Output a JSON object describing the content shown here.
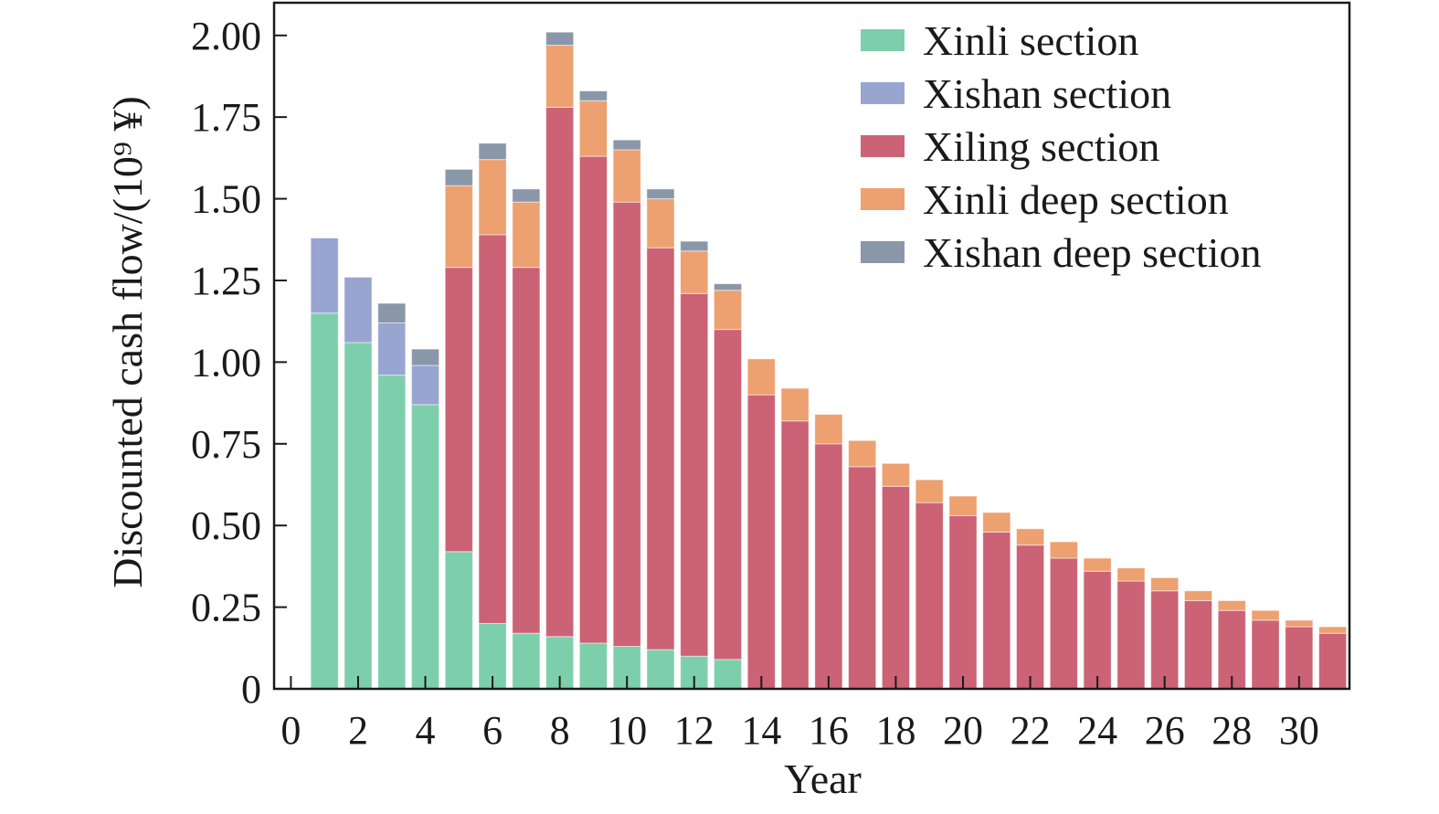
{
  "chart_data": {
    "type": "bar",
    "stacked": true,
    "xlabel": "Year",
    "ylabel": "Discounted cash flow/(10⁹ ¥)",
    "xlim": [
      -0.5,
      31.5
    ],
    "ylim": [
      0,
      2.1
    ],
    "xticks": [
      "0",
      "2",
      "4",
      "6",
      "8",
      "10",
      "12",
      "14",
      "16",
      "18",
      "20",
      "22",
      "24",
      "26",
      "28",
      "30"
    ],
    "xtick_values": [
      0,
      2,
      4,
      6,
      8,
      10,
      12,
      14,
      16,
      18,
      20,
      22,
      24,
      26,
      28,
      30
    ],
    "yticks": [
      "0",
      "0.25",
      "0.50",
      "0.75",
      "1.00",
      "1.25",
      "1.50",
      "1.75",
      "2.00"
    ],
    "ytick_values": [
      0,
      0.25,
      0.5,
      0.75,
      1.0,
      1.25,
      1.5,
      1.75,
      2.0
    ],
    "legend_position": "top-right",
    "grid": false,
    "x": [
      1,
      2,
      3,
      4,
      5,
      6,
      7,
      8,
      9,
      10,
      11,
      12,
      13,
      14,
      15,
      16,
      17,
      18,
      19,
      20,
      21,
      22,
      23,
      24,
      25,
      26,
      27,
      28,
      29,
      30,
      31
    ],
    "series": [
      {
        "name": "Xinli section",
        "color": "#7dcfab",
        "values": [
          1.15,
          1.06,
          0.96,
          0.87,
          0.42,
          0.2,
          0.17,
          0.16,
          0.14,
          0.13,
          0.12,
          0.1,
          0.09,
          0,
          0,
          0,
          0,
          0,
          0,
          0,
          0,
          0,
          0,
          0,
          0,
          0,
          0,
          0,
          0,
          0,
          0
        ]
      },
      {
        "name": "Xishan section",
        "color": "#98a5d1",
        "values": [
          0.23,
          0.2,
          0.16,
          0.12,
          0,
          0,
          0,
          0,
          0,
          0,
          0,
          0,
          0,
          0,
          0,
          0,
          0,
          0,
          0,
          0,
          0,
          0,
          0,
          0,
          0,
          0,
          0,
          0,
          0,
          0,
          0
        ]
      },
      {
        "name": "Xiling section",
        "color": "#cc6275",
        "values": [
          0,
          0,
          0,
          0,
          0.87,
          1.19,
          1.12,
          1.62,
          1.49,
          1.36,
          1.23,
          1.11,
          1.01,
          0.9,
          0.82,
          0.75,
          0.68,
          0.62,
          0.57,
          0.53,
          0.48,
          0.44,
          0.4,
          0.36,
          0.33,
          0.3,
          0.27,
          0.24,
          0.21,
          0.19,
          0.17
        ]
      },
      {
        "name": "Xinli deep section",
        "color": "#eda070",
        "values": [
          0,
          0,
          0,
          0,
          0.25,
          0.23,
          0.2,
          0.19,
          0.17,
          0.16,
          0.15,
          0.13,
          0.12,
          0.11,
          0.1,
          0.09,
          0.08,
          0.07,
          0.07,
          0.06,
          0.06,
          0.05,
          0.05,
          0.04,
          0.04,
          0.04,
          0.03,
          0.03,
          0.03,
          0.02,
          0.02
        ]
      },
      {
        "name": "Xishan deep section",
        "color": "#8a97a8",
        "values": [
          0,
          0,
          0.06,
          0.05,
          0.05,
          0.05,
          0.04,
          0.04,
          0.03,
          0.03,
          0.03,
          0.03,
          0.02,
          0,
          0,
          0,
          0,
          0,
          0,
          0,
          0,
          0,
          0,
          0,
          0,
          0,
          0,
          0,
          0,
          0,
          0
        ]
      }
    ]
  }
}
